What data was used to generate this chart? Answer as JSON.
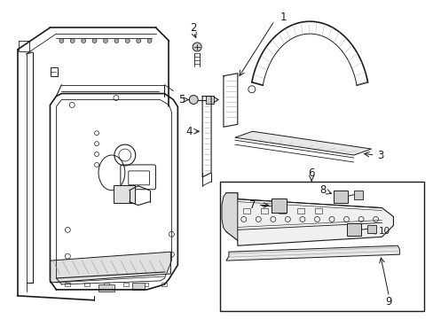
{
  "bg_color": "#ffffff",
  "line_color": "#1a1a1a",
  "gray_fill": "#c8c8c8",
  "light_fill": "#e8e8e8",
  "fig_width": 4.89,
  "fig_height": 3.6,
  "dpi": 100
}
